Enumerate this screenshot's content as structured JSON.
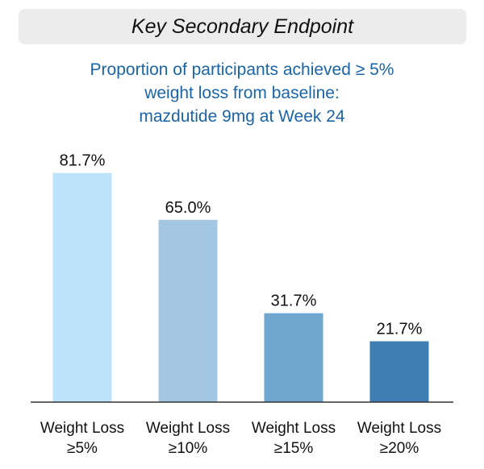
{
  "header": {
    "title": "Key Secondary Endpoint"
  },
  "subtitle_lines": [
    "Proportion of participants achieved ≥ 5%",
    "weight loss from baseline:",
    "mazdutide 9mg at Week 24"
  ],
  "colors": {
    "header_bg": "#ececec",
    "subtitle": "#1a64a8",
    "bars": [
      "#bde3fb",
      "#a3c6e2",
      "#6fa7d0",
      "#3f7eb4"
    ],
    "axis": "#333333"
  },
  "chart_data": {
    "type": "bar",
    "title": "Proportion of participants achieved ≥ 5% weight loss from baseline: mazdutide 9mg at Week 24",
    "categories": [
      [
        "Weight Loss",
        "≥5%"
      ],
      [
        "Weight Loss",
        "≥10%"
      ],
      [
        "Weight Loss",
        "≥15%"
      ],
      [
        "Weight Loss",
        "≥20%"
      ]
    ],
    "values": [
      81.7,
      65.0,
      31.7,
      21.7
    ],
    "value_labels": [
      "81.7%",
      "65.0%",
      "31.7%",
      "21.7%"
    ],
    "unit": "%",
    "ylim": [
      0,
      100
    ],
    "grid": false,
    "legend": "none"
  }
}
